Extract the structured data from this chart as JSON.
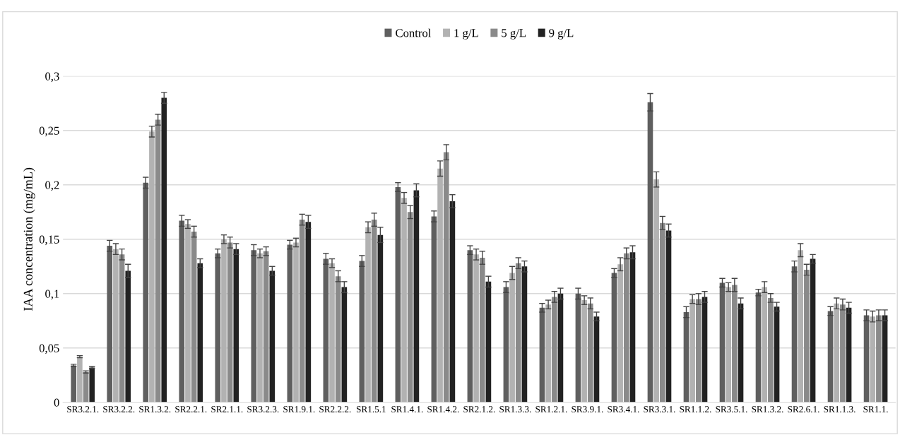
{
  "chart_data": {
    "type": "bar",
    "ylabel": "IAA concentration (mg/mL)",
    "categories": [
      "SR3.2.1.",
      "SR3.2.2.",
      "SR1.3.2.",
      "SR2.2.1.",
      "SR2.1.1.",
      "SR3.2.3.",
      "SR1.9.1.",
      "SR2.2.2.",
      "SR1.5.1",
      "SR1.4.1.",
      "SR1.4.2.",
      "SR2.1.2.",
      "SR1.3.3.",
      "SR1.2.1.",
      "SR3.9.1.",
      "SR3.4.1.",
      "SR3.3.1.",
      "SR1.1.2.",
      "SR3.5.1.",
      "SR1.3.2.",
      "SR2.6.1.",
      "SR1.1.3.",
      "SR1.1."
    ],
    "series": [
      {
        "name": "Control",
        "color": "#5f5f5f",
        "values": [
          0.034,
          0.144,
          0.202,
          0.167,
          0.137,
          0.14,
          0.145,
          0.132,
          0.13,
          0.198,
          0.171,
          0.14,
          0.106,
          0.087,
          0.1,
          0.119,
          0.276,
          0.083,
          0.11,
          0.101,
          0.125,
          0.084,
          0.08
        ],
        "errors": [
          0.001,
          0.005,
          0.005,
          0.005,
          0.004,
          0.005,
          0.004,
          0.005,
          0.005,
          0.004,
          0.005,
          0.004,
          0.005,
          0.004,
          0.005,
          0.004,
          0.008,
          0.005,
          0.004,
          0.003,
          0.005,
          0.004,
          0.005
        ]
      },
      {
        "name": "1 g/L",
        "color": "#b2b2b2",
        "values": [
          0.042,
          0.141,
          0.249,
          0.164,
          0.15,
          0.137,
          0.147,
          0.128,
          0.161,
          0.188,
          0.215,
          0.136,
          0.119,
          0.09,
          0.094,
          0.127,
          0.205,
          0.095,
          0.106,
          0.106,
          0.14,
          0.091,
          0.079
        ],
        "errors": [
          0.001,
          0.005,
          0.005,
          0.004,
          0.004,
          0.004,
          0.004,
          0.004,
          0.005,
          0.005,
          0.007,
          0.005,
          0.006,
          0.004,
          0.004,
          0.006,
          0.007,
          0.004,
          0.004,
          0.005,
          0.006,
          0.005,
          0.005
        ]
      },
      {
        "name": "5 g/L",
        "color": "#8a8a8a",
        "values": [
          0.028,
          0.136,
          0.26,
          0.157,
          0.147,
          0.139,
          0.168,
          0.116,
          0.168,
          0.175,
          0.23,
          0.133,
          0.128,
          0.097,
          0.091,
          0.137,
          0.165,
          0.095,
          0.108,
          0.096,
          0.122,
          0.09,
          0.08
        ],
        "errors": [
          0.001,
          0.005,
          0.005,
          0.005,
          0.005,
          0.004,
          0.005,
          0.005,
          0.006,
          0.006,
          0.007,
          0.006,
          0.005,
          0.005,
          0.005,
          0.005,
          0.006,
          0.005,
          0.006,
          0.004,
          0.005,
          0.005,
          0.005
        ]
      },
      {
        "name": "9 g/L",
        "color": "#222222",
        "values": [
          0.032,
          0.121,
          0.28,
          0.128,
          0.141,
          0.121,
          0.166,
          0.106,
          0.154,
          0.195,
          0.185,
          0.111,
          0.125,
          0.1,
          0.079,
          0.138,
          0.158,
          0.097,
          0.091,
          0.088,
          0.132,
          0.087,
          0.08
        ],
        "errors": [
          0.001,
          0.006,
          0.005,
          0.004,
          0.005,
          0.004,
          0.006,
          0.005,
          0.007,
          0.006,
          0.006,
          0.005,
          0.005,
          0.005,
          0.004,
          0.006,
          0.006,
          0.005,
          0.005,
          0.004,
          0.004,
          0.005,
          0.005
        ]
      }
    ],
    "ylim": [
      0,
      0.3
    ],
    "yticks": [
      0,
      {
        "value": 0.05,
        "label": "0,05"
      },
      {
        "value": 0.1,
        "label": "0,1"
      },
      {
        "value": 0.15,
        "label": "0,15"
      },
      {
        "value": 0.2,
        "label": "0,2"
      },
      {
        "value": 0.25,
        "label": "0,25"
      },
      {
        "value": 0.3,
        "label": "0,3"
      }
    ],
    "grid": "y",
    "legend": "top"
  }
}
